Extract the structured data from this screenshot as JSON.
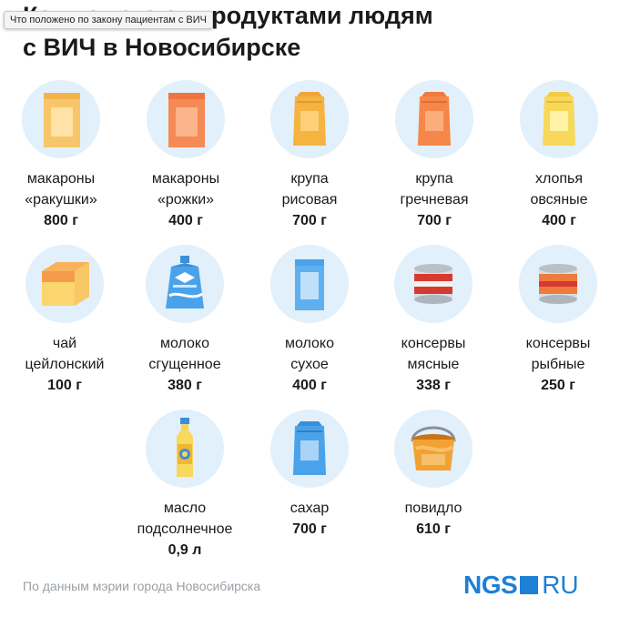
{
  "tooltip": "Что положено по закону пациентам с ВИЧ",
  "title": {
    "line1": "Как помогают продуктами людям",
    "line2": "с ВИЧ в Новосибирске"
  },
  "items": [
    {
      "label1": "макароны",
      "label2": "«ракушки»",
      "amount": "800 г",
      "icon": "pasta-box-icon"
    },
    {
      "label1": "макароны",
      "label2": "«рожки»",
      "amount": "400 г",
      "icon": "pasta-box-icon"
    },
    {
      "label1": "крупа",
      "label2": "рисовая",
      "amount": "700 г",
      "icon": "grain-bag-icon"
    },
    {
      "label1": "крупа",
      "label2": "гречневая",
      "amount": "700 г",
      "icon": "grain-bag-icon"
    },
    {
      "label1": "хлопья",
      "label2": "овсяные",
      "amount": "400 г",
      "icon": "oat-flakes-bag-icon"
    },
    {
      "label1": "чай",
      "label2": "цейлонский",
      "amount": "100 г",
      "icon": "tea-box-icon"
    },
    {
      "label1": "молоко",
      "label2": "сгущенное",
      "amount": "380 г",
      "icon": "condensed-milk-pouch-icon"
    },
    {
      "label1": "молоко",
      "label2": "сухое",
      "amount": "400 г",
      "icon": "powdered-milk-box-icon"
    },
    {
      "label1": "консервы",
      "label2": "мясные",
      "amount": "338 г",
      "icon": "meat-can-icon"
    },
    {
      "label1": "консервы",
      "label2": "рыбные",
      "amount": "250 г",
      "icon": "fish-can-icon"
    },
    {
      "label1": "масло",
      "label2": "подсолнечное",
      "amount": "0,9 л",
      "icon": "oil-bottle-icon"
    },
    {
      "label1": "сахар",
      "label2": "",
      "amount": "700 г",
      "icon": "sugar-bag-icon"
    },
    {
      "label1": "повидло",
      "label2": "",
      "amount": "610 г",
      "icon": "jam-bucket-icon"
    }
  ],
  "source": "По данным мэрии города Новосибирска",
  "logo": {
    "left": "NGS",
    "right": "RU"
  }
}
